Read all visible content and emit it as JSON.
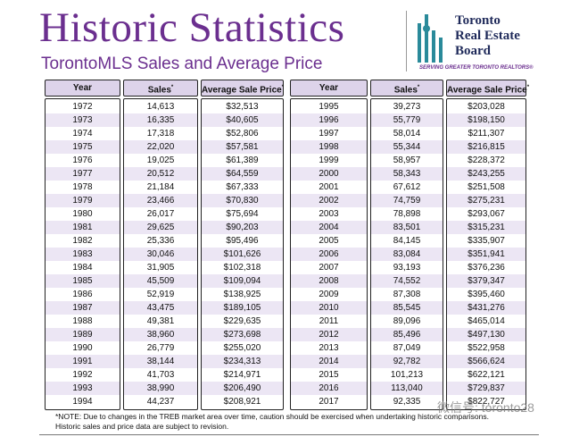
{
  "header": {
    "title": "Historic Statistics",
    "subtitle": "TorontoMLS Sales and Average Price",
    "logo": {
      "lines": [
        "Toronto",
        "Real Estate",
        "Board"
      ],
      "tagline": "SERVING GREATER TORONTO REALTORS®"
    }
  },
  "table": {
    "columns": [
      {
        "text": "Year",
        "mark": ""
      },
      {
        "text": "Sales",
        "mark": "*"
      },
      {
        "text": "Average Sale Price",
        "mark": "*"
      }
    ],
    "left_rows": [
      [
        "1972",
        "14,613",
        "$32,513"
      ],
      [
        "1973",
        "16,335",
        "$40,605"
      ],
      [
        "1974",
        "17,318",
        "$52,806"
      ],
      [
        "1975",
        "22,020",
        "$57,581"
      ],
      [
        "1976",
        "19,025",
        "$61,389"
      ],
      [
        "1977",
        "20,512",
        "$64,559"
      ],
      [
        "1978",
        "21,184",
        "$67,333"
      ],
      [
        "1979",
        "23,466",
        "$70,830"
      ],
      [
        "1980",
        "26,017",
        "$75,694"
      ],
      [
        "1981",
        "29,625",
        "$90,203"
      ],
      [
        "1982",
        "25,336",
        "$95,496"
      ],
      [
        "1983",
        "30,046",
        "$101,626"
      ],
      [
        "1984",
        "31,905",
        "$102,318"
      ],
      [
        "1985",
        "45,509",
        "$109,094"
      ],
      [
        "1986",
        "52,919",
        "$138,925"
      ],
      [
        "1987",
        "43,475",
        "$189,105"
      ],
      [
        "1988",
        "49,381",
        "$229,635"
      ],
      [
        "1989",
        "38,960",
        "$273,698"
      ],
      [
        "1990",
        "26,779",
        "$255,020"
      ],
      [
        "1991",
        "38,144",
        "$234,313"
      ],
      [
        "1992",
        "41,703",
        "$214,971"
      ],
      [
        "1993",
        "38,990",
        "$206,490"
      ],
      [
        "1994",
        "44,237",
        "$208,921"
      ]
    ],
    "right_rows": [
      [
        "1995",
        "39,273",
        "$203,028"
      ],
      [
        "1996",
        "55,779",
        "$198,150"
      ],
      [
        "1997",
        "58,014",
        "$211,307"
      ],
      [
        "1998",
        "55,344",
        "$216,815"
      ],
      [
        "1999",
        "58,957",
        "$228,372"
      ],
      [
        "2000",
        "58,343",
        "$243,255"
      ],
      [
        "2001",
        "67,612",
        "$251,508"
      ],
      [
        "2002",
        "74,759",
        "$275,231"
      ],
      [
        "2003",
        "78,898",
        "$293,067"
      ],
      [
        "2004",
        "83,501",
        "$315,231"
      ],
      [
        "2005",
        "84,145",
        "$335,907"
      ],
      [
        "2006",
        "83,084",
        "$351,941"
      ],
      [
        "2007",
        "93,193",
        "$376,236"
      ],
      [
        "2008",
        "74,552",
        "$379,347"
      ],
      [
        "2009",
        "87,308",
        "$395,460"
      ],
      [
        "2010",
        "85,545",
        "$431,276"
      ],
      [
        "2011",
        "89,096",
        "$465,014"
      ],
      [
        "2012",
        "85,496",
        "$497,130"
      ],
      [
        "2013",
        "87,049",
        "$522,958"
      ],
      [
        "2014",
        "92,782",
        "$566,624"
      ],
      [
        "2015",
        "101,213",
        "$622,121"
      ],
      [
        "2016",
        "113,040",
        "$729,837"
      ],
      [
        "2017",
        "92,335",
        "$822,727"
      ]
    ]
  },
  "note": [
    "*NOTE: Due to changes in the TREB market area over time, caution should be exercised when undertaking historic comparisons.",
    "Historic sales and price data are subject to revision."
  ],
  "watermark": "微信号: toronto28"
}
